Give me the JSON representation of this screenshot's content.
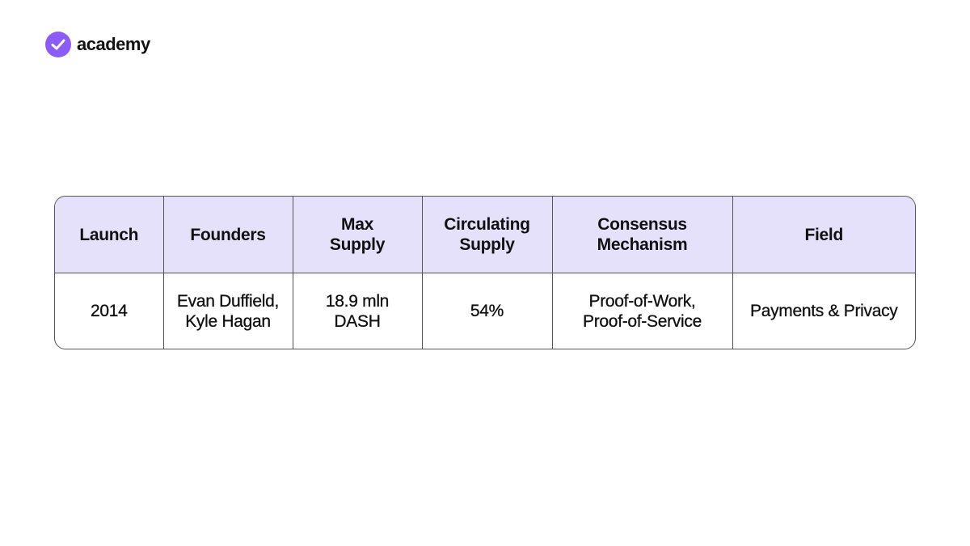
{
  "brand": "academy",
  "table": {
    "header": [
      [
        "Launch"
      ],
      [
        "Founders"
      ],
      [
        "Max",
        "Supply"
      ],
      [
        "Circulating",
        "Supply"
      ],
      [
        "Consensus",
        "Mechanism"
      ],
      [
        "Field"
      ]
    ],
    "rows": [
      [
        [
          "2014"
        ],
        [
          "Evan Duffield,",
          "Kyle Hagan"
        ],
        [
          "18.9 mln",
          "DASH"
        ],
        [
          "54%"
        ],
        [
          "Proof-of-Work,",
          "Proof-of-Service"
        ],
        [
          "Payments & Privacy"
        ]
      ]
    ]
  }
}
